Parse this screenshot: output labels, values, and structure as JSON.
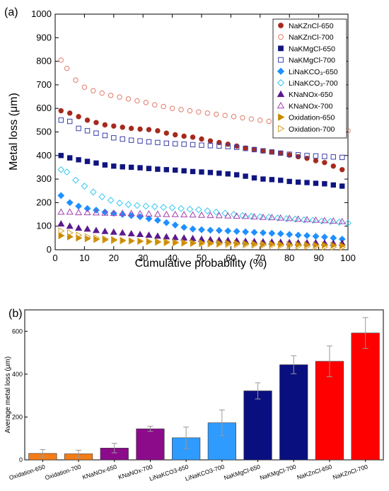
{
  "chart_data": [
    {
      "panel_label": "(a)",
      "type": "scatter",
      "xlabel": "Cumulative probability (%)",
      "ylabel": "Metal loss (μm)",
      "xlim": [
        0,
        100
      ],
      "ylim": [
        0,
        1000
      ],
      "xticks": [
        "0",
        "10",
        "20",
        "30",
        "40",
        "50",
        "60",
        "70",
        "80",
        "90",
        "100"
      ],
      "yticks": [
        "0",
        "100",
        "200",
        "300",
        "400",
        "500",
        "600",
        "700",
        "800",
        "900",
        "1000"
      ],
      "grid": false,
      "legend_position": "top-right",
      "legend": [
        {
          "name": "NaKZnCl-650",
          "color": "#a52a1e",
          "marker": "circle",
          "filled": true
        },
        {
          "name": "NaKZnCl-700",
          "color": "#e07a6b",
          "marker": "circle",
          "filled": false
        },
        {
          "name": "NaKMgCl-650",
          "color": "#101580",
          "marker": "square",
          "filled": true
        },
        {
          "name": "NaKMgCl-700",
          "color": "#3a3fa8",
          "marker": "square",
          "filled": false
        },
        {
          "name": "LiNaKCO₃-650",
          "color": "#1e90ff",
          "marker": "diamond",
          "filled": true
        },
        {
          "name": "LiNaKCO₃-700",
          "color": "#35c8f0",
          "marker": "diamond",
          "filled": false
        },
        {
          "name": "KNaNOx-650",
          "color": "#5a1a8c",
          "marker": "triangle-up",
          "filled": true
        },
        {
          "name": "KNaNOx-700",
          "color": "#a040b0",
          "marker": "triangle-up",
          "filled": false
        },
        {
          "name": "Oxidation-650",
          "color": "#c88a00",
          "marker": "triangle-right",
          "filled": true
        },
        {
          "name": "Oxidation-700",
          "color": "#d8a020",
          "marker": "triangle-right",
          "filled": false
        }
      ],
      "series": [
        {
          "name": "NaKZnCl-650",
          "x": [
            2,
            5,
            8,
            11,
            14,
            17,
            20,
            23,
            26,
            29,
            32,
            35,
            38,
            41,
            44,
            47,
            50,
            53,
            56,
            59,
            62,
            65,
            68,
            71,
            74,
            77,
            80,
            83,
            86,
            89,
            92,
            95,
            98
          ],
          "y": [
            590,
            580,
            565,
            550,
            540,
            530,
            525,
            520,
            515,
            512,
            510,
            505,
            495,
            488,
            482,
            478,
            470,
            462,
            455,
            448,
            440,
            432,
            426,
            420,
            415,
            410,
            402,
            395,
            388,
            378,
            370,
            355,
            340
          ]
        },
        {
          "name": "NaKZnCl-700",
          "x": [
            2,
            4,
            7,
            10,
            13,
            16,
            19,
            22,
            25,
            28,
            31,
            34,
            37,
            40,
            43,
            46,
            49,
            52,
            55,
            58,
            61,
            64,
            67,
            70,
            73,
            76,
            79,
            82,
            85,
            88,
            91,
            94,
            97,
            100
          ],
          "y": [
            805,
            770,
            720,
            690,
            675,
            665,
            655,
            648,
            640,
            632,
            625,
            615,
            608,
            600,
            595,
            590,
            585,
            580,
            575,
            570,
            565,
            560,
            555,
            550,
            545,
            540,
            535,
            530,
            525,
            520,
            517,
            514,
            510,
            505
          ]
        },
        {
          "name": "NaKMgCl-650",
          "x": [
            2,
            5,
            8,
            11,
            14,
            17,
            20,
            23,
            26,
            29,
            32,
            35,
            38,
            41,
            44,
            47,
            50,
            53,
            56,
            59,
            62,
            65,
            68,
            71,
            74,
            77,
            80,
            83,
            86,
            89,
            92,
            95,
            98
          ],
          "y": [
            400,
            390,
            382,
            375,
            368,
            360,
            355,
            352,
            350,
            348,
            345,
            342,
            340,
            338,
            335,
            332,
            330,
            328,
            325,
            322,
            318,
            312,
            305,
            300,
            298,
            295,
            290,
            287,
            285,
            282,
            280,
            275,
            270
          ]
        },
        {
          "name": "NaKMgCl-700",
          "x": [
            2,
            5,
            8,
            11,
            14,
            17,
            20,
            23,
            26,
            29,
            32,
            35,
            38,
            41,
            44,
            47,
            50,
            53,
            56,
            59,
            62,
            65,
            68,
            71,
            74,
            77,
            80,
            83,
            86,
            89,
            92,
            95,
            98
          ],
          "y": [
            550,
            545,
            515,
            505,
            495,
            485,
            475,
            470,
            465,
            462,
            458,
            455,
            452,
            450,
            448,
            446,
            444,
            442,
            440,
            438,
            435,
            430,
            425,
            420,
            415,
            410,
            405,
            403,
            400,
            398,
            396,
            394,
            392
          ]
        },
        {
          "name": "LiNaKCO₃-650",
          "x": [
            2,
            5,
            8,
            11,
            14,
            17,
            20,
            23,
            26,
            29,
            32,
            35,
            38,
            41,
            44,
            47,
            50,
            53,
            56,
            59,
            62,
            65,
            68,
            71,
            74,
            77,
            80,
            83,
            86,
            89,
            92,
            95,
            98
          ],
          "y": [
            230,
            200,
            185,
            175,
            168,
            160,
            155,
            150,
            145,
            140,
            132,
            125,
            115,
            105,
            95,
            88,
            85,
            83,
            82,
            80,
            78,
            76,
            74,
            72,
            70,
            68,
            65,
            62,
            60,
            57,
            54,
            50,
            45
          ]
        },
        {
          "name": "LiNaKCO₃-700",
          "x": [
            2,
            4,
            7,
            10,
            13,
            16,
            19,
            22,
            25,
            28,
            31,
            34,
            37,
            40,
            43,
            46,
            49,
            52,
            55,
            58,
            61,
            64,
            67,
            70,
            73,
            76,
            79,
            82,
            85,
            88,
            91,
            94,
            97,
            100
          ],
          "y": [
            340,
            330,
            295,
            270,
            245,
            225,
            210,
            198,
            192,
            188,
            185,
            183,
            180,
            178,
            175,
            172,
            170,
            165,
            160,
            155,
            150,
            145,
            142,
            140,
            138,
            135,
            132,
            130,
            127,
            125,
            122,
            120,
            117,
            113
          ]
        },
        {
          "name": "KNaNOx-650",
          "x": [
            2,
            5,
            8,
            11,
            14,
            17,
            20,
            23,
            26,
            29,
            32,
            35,
            38,
            41,
            44,
            47,
            50,
            53,
            56,
            59,
            62,
            65,
            68,
            71,
            74,
            77,
            80,
            83,
            86,
            89,
            92,
            95,
            98
          ],
          "y": [
            110,
            100,
            92,
            88,
            82,
            78,
            75,
            72,
            68,
            65,
            62,
            58,
            55,
            52,
            50,
            48,
            45,
            43,
            41,
            40,
            38,
            36,
            35,
            34,
            33,
            32,
            31,
            30,
            30,
            30,
            29,
            28,
            28
          ]
        },
        {
          "name": "KNaNOx-700",
          "x": [
            2,
            5,
            8,
            11,
            14,
            17,
            20,
            23,
            26,
            29,
            32,
            35,
            38,
            41,
            44,
            47,
            50,
            53,
            56,
            59,
            62,
            65,
            68,
            71,
            74,
            77,
            80,
            83,
            86,
            89,
            92,
            95,
            98
          ],
          "y": [
            160,
            160,
            158,
            158,
            157,
            156,
            155,
            155,
            154,
            153,
            152,
            151,
            150,
            150,
            149,
            148,
            147,
            146,
            145,
            144,
            143,
            142,
            140,
            138,
            137,
            135,
            133,
            130,
            128,
            126,
            124,
            122,
            120
          ]
        },
        {
          "name": "Oxidation-650",
          "x": [
            2,
            5,
            8,
            11,
            14,
            17,
            20,
            23,
            26,
            29,
            32,
            35,
            38,
            41,
            44,
            47,
            50,
            53,
            56,
            59,
            62,
            65,
            68,
            71,
            74,
            77,
            80,
            83,
            86,
            89,
            92,
            95,
            98
          ],
          "y": [
            60,
            55,
            50,
            47,
            44,
            42,
            40,
            38,
            37,
            36,
            35,
            34,
            33,
            32,
            31,
            30,
            30,
            29,
            28,
            28,
            27,
            26,
            25,
            24,
            24,
            23,
            22,
            22,
            21,
            20,
            20,
            19,
            18
          ]
        },
        {
          "name": "Oxidation-700",
          "x": [
            2,
            5,
            8,
            11,
            14,
            17,
            20,
            23,
            26,
            29,
            32,
            35,
            38,
            41,
            44,
            47,
            50,
            53,
            56,
            59,
            62,
            65,
            68,
            71,
            74,
            77,
            80,
            83,
            86,
            89,
            92,
            95,
            98
          ],
          "y": [
            80,
            72,
            62,
            55,
            50,
            46,
            43,
            40,
            38,
            36,
            34,
            32,
            30,
            29,
            28,
            27,
            26,
            25,
            24,
            23,
            22,
            21,
            20,
            19,
            18,
            17,
            16,
            15,
            14,
            13,
            12,
            11,
            10
          ]
        }
      ]
    },
    {
      "panel_label": "(b)",
      "type": "bar",
      "ylabel": "Average metal loss (μm)",
      "ylim": [
        0,
        700
      ],
      "yticks": [
        "0",
        "200",
        "400",
        "600"
      ],
      "grid": false,
      "categories": [
        "Oxidation-650",
        "Oxidation-700",
        "KNaNOx-650",
        "KNaNOx-700",
        "LiNaKCO3-650",
        "LiNaKCO3-700",
        "NaKMgCl-650",
        "NaKMgCl-700",
        "NaKZnCl-650",
        "NaKZnCl-700"
      ],
      "values": [
        30,
        28,
        55,
        145,
        103,
        173,
        322,
        444,
        460,
        592
      ],
      "errors": [
        18,
        17,
        22,
        12,
        50,
        60,
        38,
        42,
        72,
        72
      ],
      "colors": [
        "#f57c16",
        "#f57c16",
        "#8b0b8b",
        "#8b0b8b",
        "#2f9bff",
        "#2f9bff",
        "#0a0f80",
        "#0a0f80",
        "#ff0000",
        "#ff0000"
      ]
    }
  ]
}
